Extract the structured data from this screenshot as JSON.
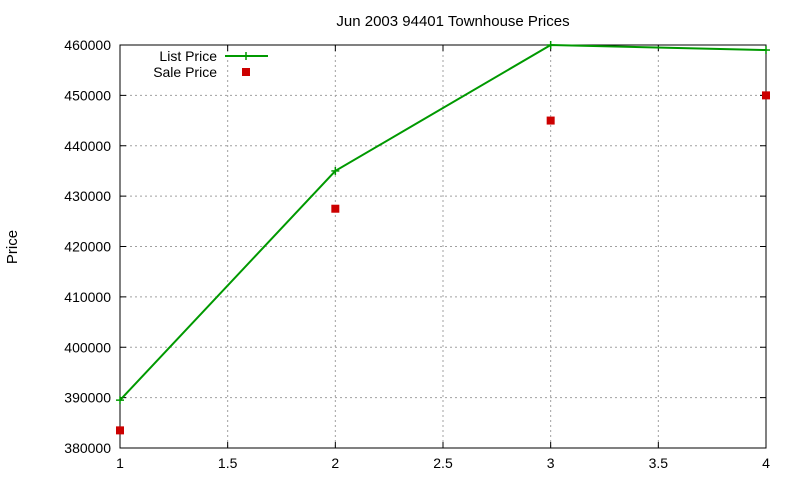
{
  "chart_data": {
    "type": "line",
    "title": "Jun 2003 94401 Townhouse Prices",
    "xlabel": "",
    "ylabel": "Price",
    "xlim": [
      1,
      4
    ],
    "ylim": [
      380000,
      460000
    ],
    "xticks": [
      "1",
      "1.5",
      "2",
      "2.5",
      "3",
      "3.5",
      "4"
    ],
    "yticks": [
      "380000",
      "390000",
      "400000",
      "410000",
      "420000",
      "430000",
      "440000",
      "450000",
      "460000"
    ],
    "grid": true,
    "legend_position": "top-left",
    "series": [
      {
        "name": "List Price",
        "style": "linespoints",
        "marker": "plus",
        "color": "#009900",
        "x": [
          1,
          2,
          3,
          4
        ],
        "y": [
          389500,
          435000,
          460000,
          459000
        ]
      },
      {
        "name": "Sale Price",
        "style": "points",
        "marker": "square",
        "color": "#cc0000",
        "x": [
          1,
          2,
          3,
          4
        ],
        "y": [
          383500,
          427500,
          445000,
          450000
        ]
      }
    ]
  }
}
